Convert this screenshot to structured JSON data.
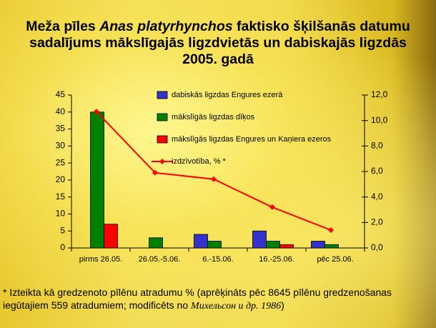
{
  "chart_data": {
    "type": "bar",
    "title": [
      {
        "text": "Meža pīles ",
        "italic": false
      },
      {
        "text": "Anas platyrhynchos",
        "italic": true
      },
      {
        "text": " faktisko šķilšanās datumu sadalījums mākslīgajās ligzdvietās un dabiskajās ligzdās 2005. gadā",
        "italic": false
      }
    ],
    "categories": [
      "pirms 26.05.",
      "26.05.-5.06.",
      "6.-15.06.",
      "16.-25.06.",
      "pēc 25.06."
    ],
    "series": [
      {
        "name": "dabiskās ligzdas Engures ezerā",
        "color": "#3333cc",
        "values": [
          0,
          0,
          4,
          5,
          2
        ]
      },
      {
        "name": "mākslīgās ligzdas dīķos",
        "color": "#008000",
        "values": [
          40,
          3,
          2,
          2,
          1
        ]
      },
      {
        "name": "mākslīgās ligzdas Engures un Kaņiera ezeros",
        "color": "#ff0000",
        "values": [
          7,
          0,
          0,
          1,
          0
        ]
      },
      {
        "name": "izdzīvotība, % *",
        "color": "#ff0000",
        "type": "line",
        "axis": "y2",
        "values": [
          10.7,
          5.9,
          5.4,
          3.2,
          1.4
        ]
      }
    ],
    "ylim": [
      0,
      45
    ],
    "yticks": [
      0,
      5,
      10,
      15,
      20,
      25,
      30,
      35,
      40,
      45
    ],
    "y2lim": [
      0,
      12
    ],
    "y2ticks": [
      {
        "value": 0,
        "label": "0,0"
      },
      {
        "value": 2,
        "label": "2,0"
      },
      {
        "value": 4,
        "label": "4,0"
      },
      {
        "value": 6,
        "label": "6,0"
      },
      {
        "value": 8,
        "label": "8,0"
      },
      {
        "value": 10,
        "label": "10,0"
      },
      {
        "value": 12,
        "label": "12,0"
      }
    ],
    "grid": false,
    "legend": "top",
    "note": [
      {
        "text": "* Izteikta kā gredzenoto pīlēnu atradumu % (aprēķināts pēc 8645 pīlēnu gredzenošanas iegūtajiem 559 atradumiem; modificēts no ",
        "style": "normal"
      },
      {
        "text": "Михельсон и др. 1986",
        "style": "serif"
      },
      {
        "text": ")",
        "style": "normal"
      }
    ]
  }
}
